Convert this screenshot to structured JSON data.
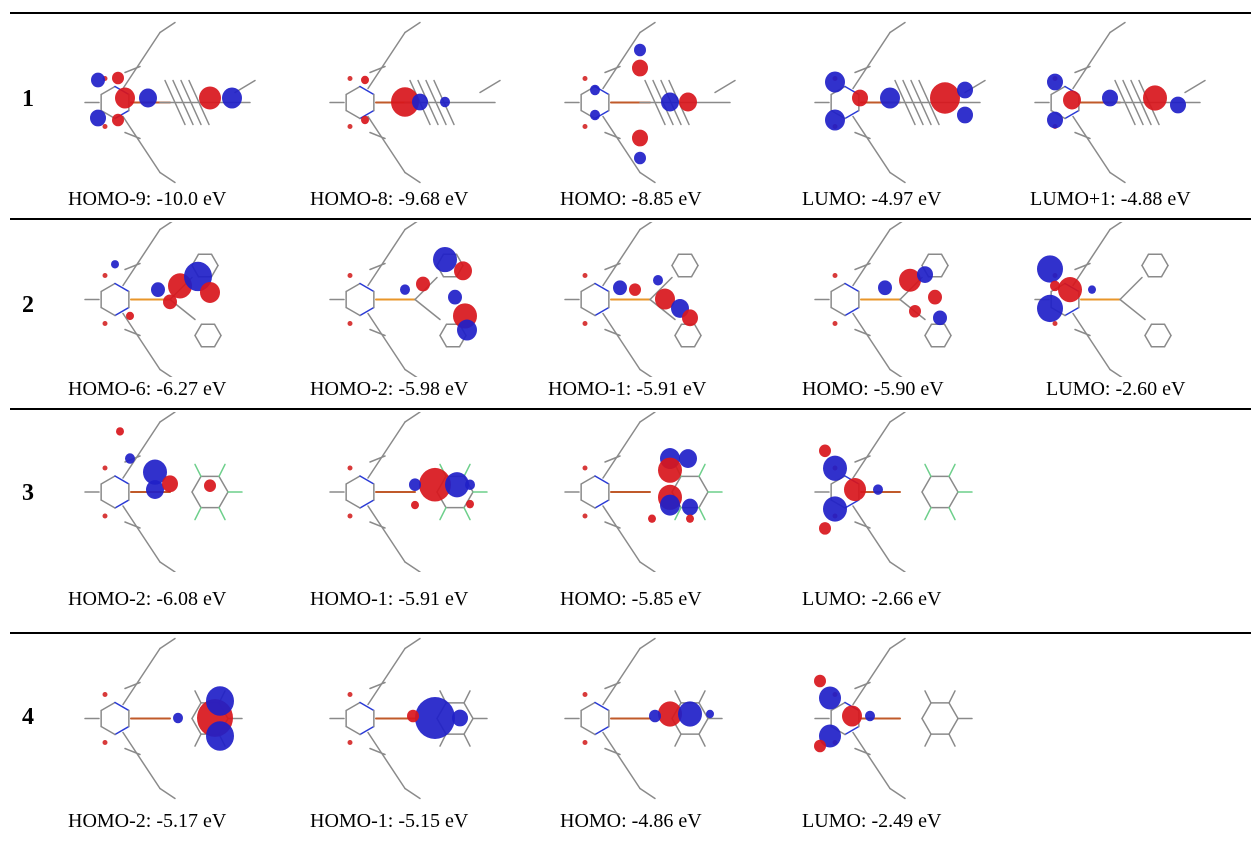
{
  "rows": [
    {
      "label": "1",
      "captions": [
        "HOMO-9: -10.0 eV",
        "HOMO-8: -9.68 eV",
        "HOMO: -8.85 eV",
        "LUMO: -4.97 eV",
        "LUMO+1: -4.88 eV"
      ]
    },
    {
      "label": "2",
      "captions": [
        "HOMO-6: -6.27 eV",
        "HOMO-2: -5.98 eV",
        "HOMO-1: -5.91 eV",
        "HOMO: -5.90 eV",
        "LUMO: -2.60 eV"
      ]
    },
    {
      "label": "3",
      "captions": [
        "HOMO-2: -6.08 eV",
        "HOMO-1: -5.91 eV",
        "HOMO: -5.85 eV",
        "LUMO: -2.66 eV"
      ]
    },
    {
      "label": "4",
      "captions": [
        "HOMO-2: -5.17 eV",
        "HOMO-1: -5.15 eV",
        "HOMO: -4.86 eV",
        "LUMO: -2.49 eV"
      ]
    }
  ],
  "colors": {
    "lobe_positive": "#d8161c",
    "lobe_negative": "#2020c8",
    "bond": "#8a8a8a",
    "nitrogen": "#2a3ad6",
    "oxygen": "#d83a3a",
    "phosphorus": "#e8962a",
    "fluorine": "#6ccf8a"
  }
}
